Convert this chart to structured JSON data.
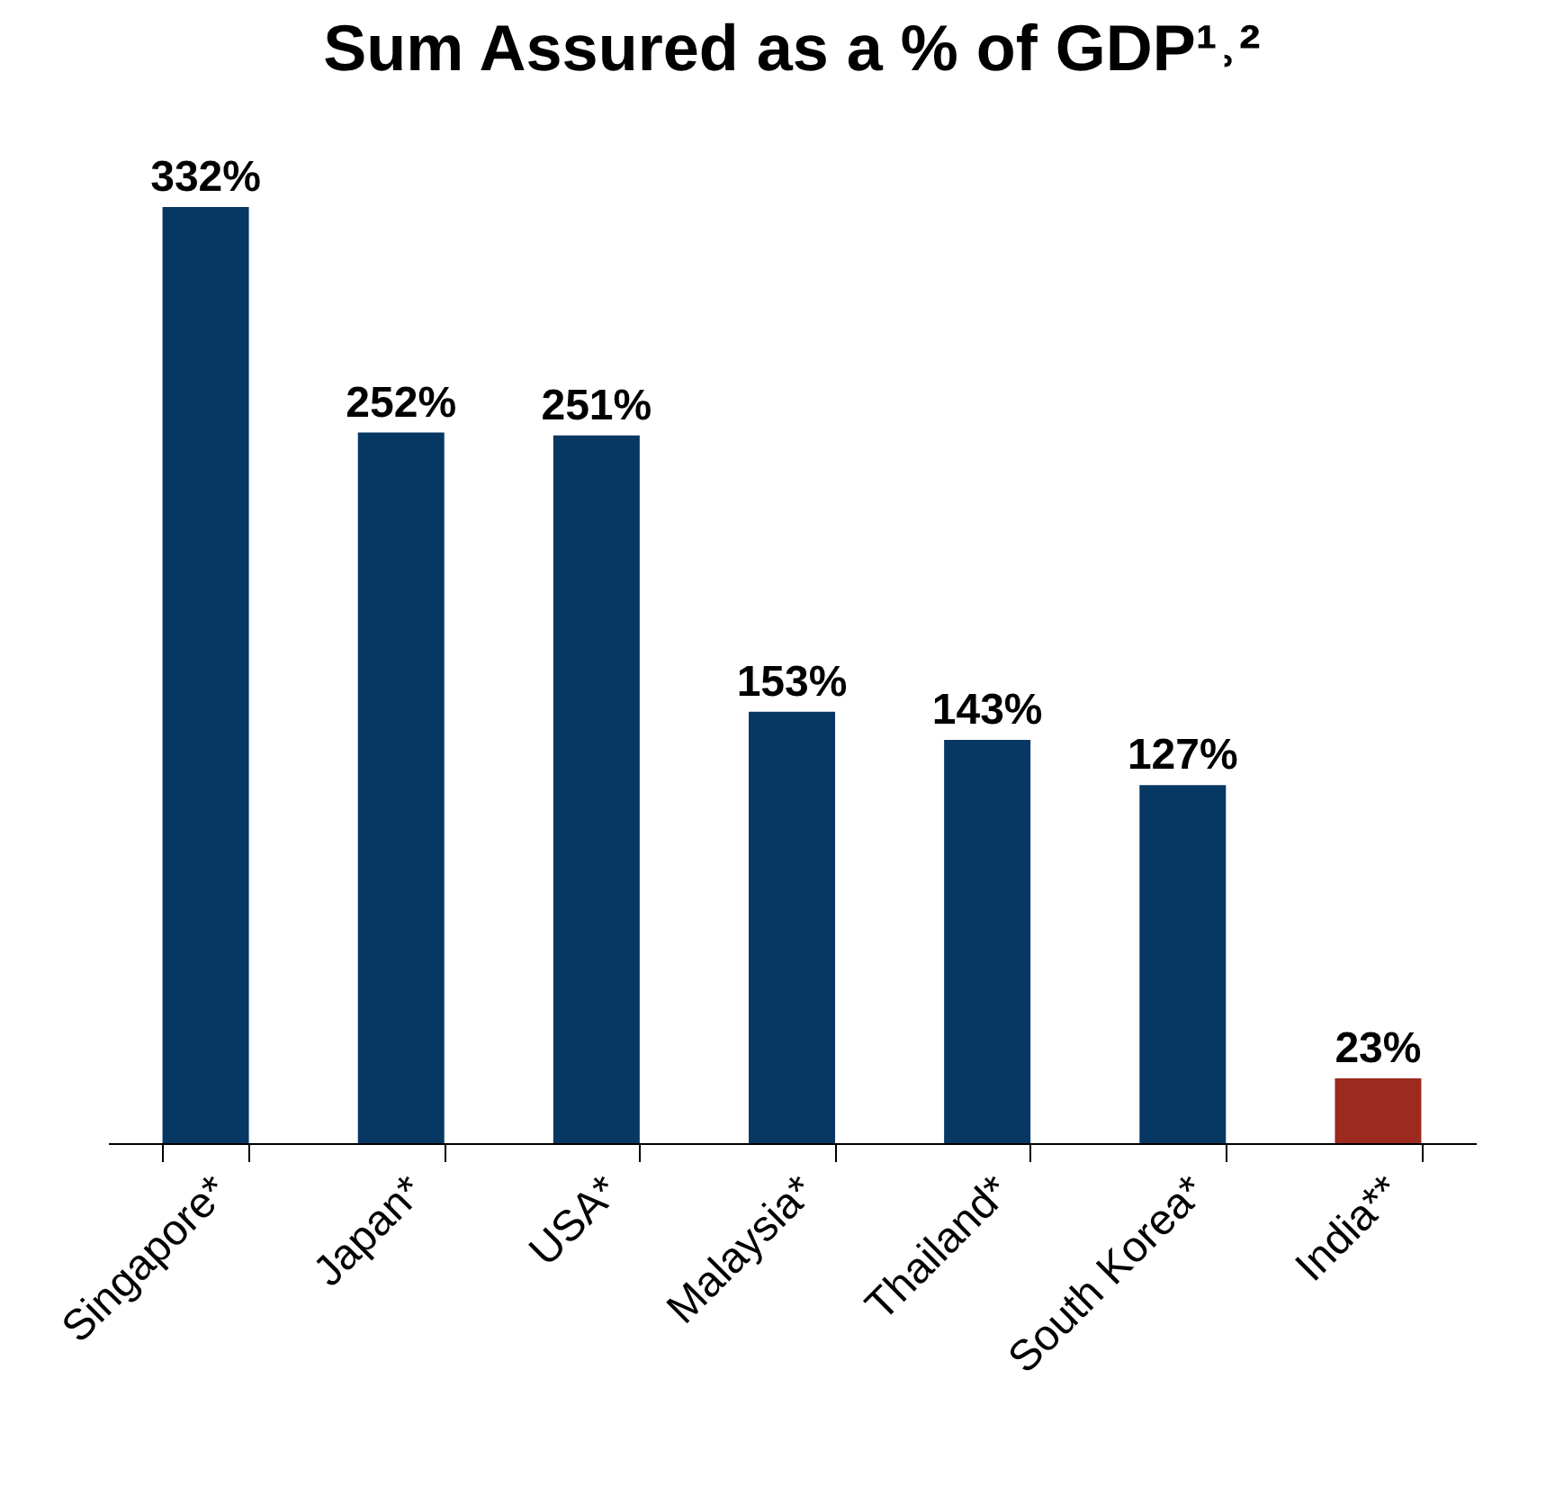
{
  "chart_data": {
    "type": "bar",
    "title": "Sum Assured as a % of GDP¹˒²",
    "categories": [
      "Singapore*",
      "Japan*",
      "USA*",
      "Malaysia*",
      "Thailand*",
      "South Korea*",
      "India**"
    ],
    "values": [
      332,
      252,
      251,
      153,
      143,
      127,
      23
    ],
    "value_labels": [
      "332%",
      "252%",
      "251%",
      "153%",
      "143%",
      "127%",
      "23%"
    ],
    "colors": [
      "#073763",
      "#073763",
      "#073763",
      "#073763",
      "#073763",
      "#073763",
      "#9c2a1f"
    ],
    "grid": false
  }
}
